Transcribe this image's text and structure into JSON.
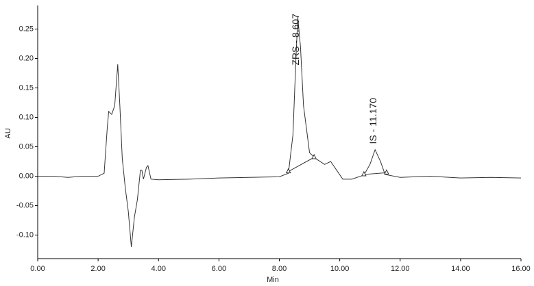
{
  "chart_data": {
    "type": "line",
    "x_label": "Min",
    "y_label": "AU",
    "xlim": [
      0,
      16
    ],
    "ylim": [
      -0.14,
      0.29
    ],
    "xticks": [
      {
        "value": 0,
        "label": "0.00"
      },
      {
        "value": 2,
        "label": "2.00"
      },
      {
        "value": 4,
        "label": "4.00"
      },
      {
        "value": 6,
        "label": "6.00"
      },
      {
        "value": 8,
        "label": "8.00"
      },
      {
        "value": 10,
        "label": "10.00"
      },
      {
        "value": 12,
        "label": "12.00"
      },
      {
        "value": 14,
        "label": "14.00"
      },
      {
        "value": 16,
        "label": "16.00"
      }
    ],
    "yticks": [
      {
        "value": -0.1,
        "label": "-0.10"
      },
      -0.05,
      {
        "value": 0,
        "label": "0.00"
      },
      0.05,
      {
        "value": 0.1,
        "label": "0.10"
      },
      0.15,
      {
        "value": 0.2,
        "label": "0.20"
      },
      0.25
    ],
    "series": [
      {
        "color": "#333333",
        "x": [
          0,
          0.5,
          1,
          1.5,
          2,
          2.2,
          2.3,
          2.35,
          2.45,
          2.55,
          2.65,
          2.72,
          2.8,
          2.9,
          3,
          3.1,
          3.2,
          3.3,
          3.4,
          3.45,
          3.5,
          3.6,
          3.65,
          3.75,
          4,
          5,
          6,
          7,
          8,
          8.3,
          8.45,
          8.55,
          8.61,
          8.7,
          8.8,
          9,
          9.2,
          9.5,
          9.7,
          9.9,
          10.1,
          10.4,
          10.8,
          11,
          11.17,
          11.35,
          11.5,
          12,
          13,
          14,
          15,
          16
        ],
        "values": [
          0,
          0,
          -0.002,
          0,
          0,
          0.005,
          0.08,
          0.11,
          0.105,
          0.12,
          0.19,
          0.12,
          0.03,
          -0.02,
          -0.06,
          -0.12,
          -0.07,
          -0.04,
          0.01,
          0.01,
          -0.005,
          0.015,
          0.018,
          -0.005,
          -0.006,
          -0.005,
          -0.003,
          -0.002,
          -0.001,
          0.005,
          0.07,
          0.2,
          0.27,
          0.22,
          0.12,
          0.04,
          0.03,
          0.02,
          0.025,
          0.01,
          -0.005,
          -0.005,
          0.002,
          0.02,
          0.045,
          0.025,
          0.003,
          -0.002,
          0,
          -0.003,
          -0.002,
          -0.003
        ]
      }
    ],
    "integration_baselines": [
      {
        "x": [
          8.3,
          9.15
        ],
        "values": [
          0.008,
          0.032
        ]
      },
      {
        "x": [
          10.8,
          11.55
        ],
        "values": [
          0.003,
          0.006
        ]
      }
    ],
    "annotations": [
      {
        "text": "ZRS - 8.607",
        "x": 8.607
      },
      {
        "text": "IS - 11.170",
        "x": 11.17
      }
    ]
  }
}
